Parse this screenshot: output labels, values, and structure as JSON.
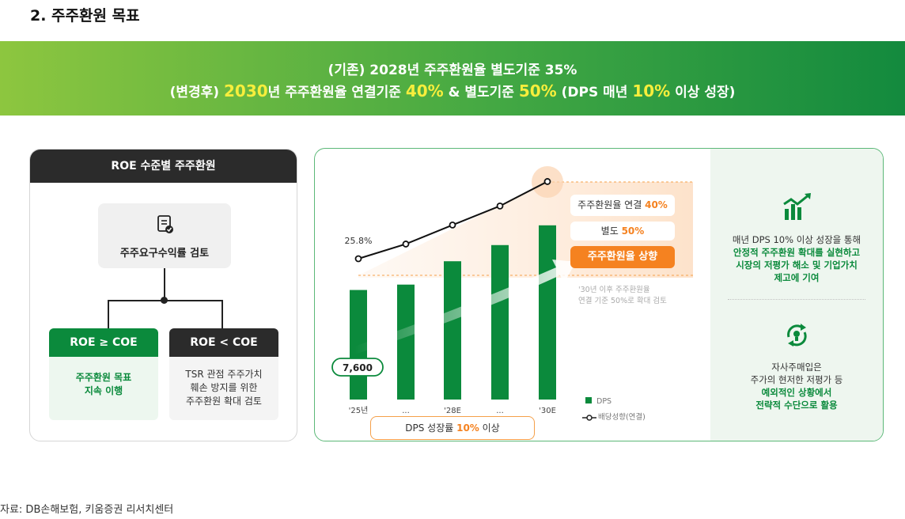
{
  "section_title": "2. 주주환원 목표",
  "banner": {
    "line1": "(기존) 2028년 주주환원율 별도기준 35%",
    "line2_a": "(변경후) ",
    "line2_year": "2030",
    "line2_b": "년 주주환원율 연결기준 ",
    "line2_consol": "40%",
    "line2_c": " & 별도기준 ",
    "line2_sep": "50%",
    "line2_d": " (DPS 매년 ",
    "line2_dps": "10%",
    "line2_e": " 이상 성장)"
  },
  "roe_panel": {
    "title": "ROE 수준별 주주환원",
    "review_label": "주주요구수익률 검토",
    "left_card": {
      "title": "ROE ≥ COE",
      "body_line1": "주주환원 목표",
      "body_line2": "지속 이행"
    },
    "right_card": {
      "title": "ROE < COE",
      "body_line1": "TSR 관점 주주가치",
      "body_line2": "훼손 방지를 위한",
      "body_line3": "주주환원 확대 검토"
    }
  },
  "chart_panel": {
    "pill_consol_text": "주주환원율 연결 ",
    "pill_consol_value": "40%",
    "pill_sep_text": "별도 ",
    "pill_sep_value": "50%",
    "pill_up": "주주환원율 상향",
    "note_line1": "'30년 이후 주주환원율",
    "note_line2": "연결 기준 50%로 확대 검토",
    "legend_dps": "DPS",
    "legend_line": "배당성향(연결)",
    "dps_growth_a": "DPS 성장률 ",
    "dps_growth_value": "10%",
    "dps_growth_b": " 이상",
    "right_top_line1": "매년 DPS 10% 이상 성장을 통해",
    "right_top_line2": "안정적 주주환원 확대를 실현하고",
    "right_top_line3": "시장의 저평가 해소 및 기업가치",
    "right_top_line4": "제고에 기여",
    "right_bottom_line1": "자사주매입은",
    "right_bottom_line2": "주가의 현저한 저평가 등",
    "right_bottom_line3": "예외적인 상황에서",
    "right_bottom_line4": "전략적 수단으로 활용"
  },
  "chart_data": {
    "type": "bar",
    "categories": [
      "'25년",
      "...",
      "'28E",
      "...",
      "'30E"
    ],
    "series": [
      {
        "name": "DPS",
        "values": [
          7600,
          7900,
          9200,
          10100,
          11200
        ],
        "color": "#0b8a3c"
      },
      {
        "name": "배당성향(연결)",
        "values": [
          25.8,
          28.5,
          32.0,
          35.5,
          40.0
        ],
        "color": "#111111"
      }
    ],
    "data_labels": {
      "dps_first": "7,600",
      "payout_first": "25.8%"
    }
  },
  "source": "자료: DB손해보험, 키움증권 리서치센터"
}
